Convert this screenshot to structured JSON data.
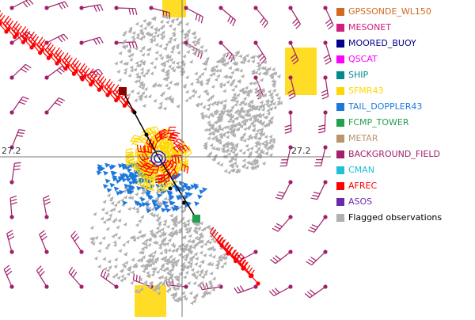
{
  "map": {
    "grid_labels": [
      "27.2",
      "27.2"
    ]
  },
  "legend": {
    "items": [
      {
        "label": "GPSSONDE_WL150",
        "color": "#d2691e"
      },
      {
        "label": "MESONET",
        "color": "#d0207a"
      },
      {
        "label": "MOORED_BUOY",
        "color": "#00008b"
      },
      {
        "label": "QSCAT",
        "color": "#ff00ff"
      },
      {
        "label": "SHIP",
        "color": "#008b8b"
      },
      {
        "label": "SFMR43",
        "color": "#ffd700"
      },
      {
        "label": "TAIL_DOPPLER43",
        "color": "#1e78dc"
      },
      {
        "label": "FCMP_TOWER",
        "color": "#22a050"
      },
      {
        "label": "METAR",
        "color": "#b8956a"
      },
      {
        "label": "BACKGROUND_FIELD",
        "color": "#a0206a"
      },
      {
        "label": "CMAN",
        "color": "#20c0d8"
      },
      {
        "label": "AFREC",
        "color": "#ff0000"
      },
      {
        "label": "ASOS",
        "color": "#6a2aa8"
      },
      {
        "label": "Flagged observations",
        "color": "#b0b0b0",
        "text_color": "#000000"
      }
    ]
  }
}
